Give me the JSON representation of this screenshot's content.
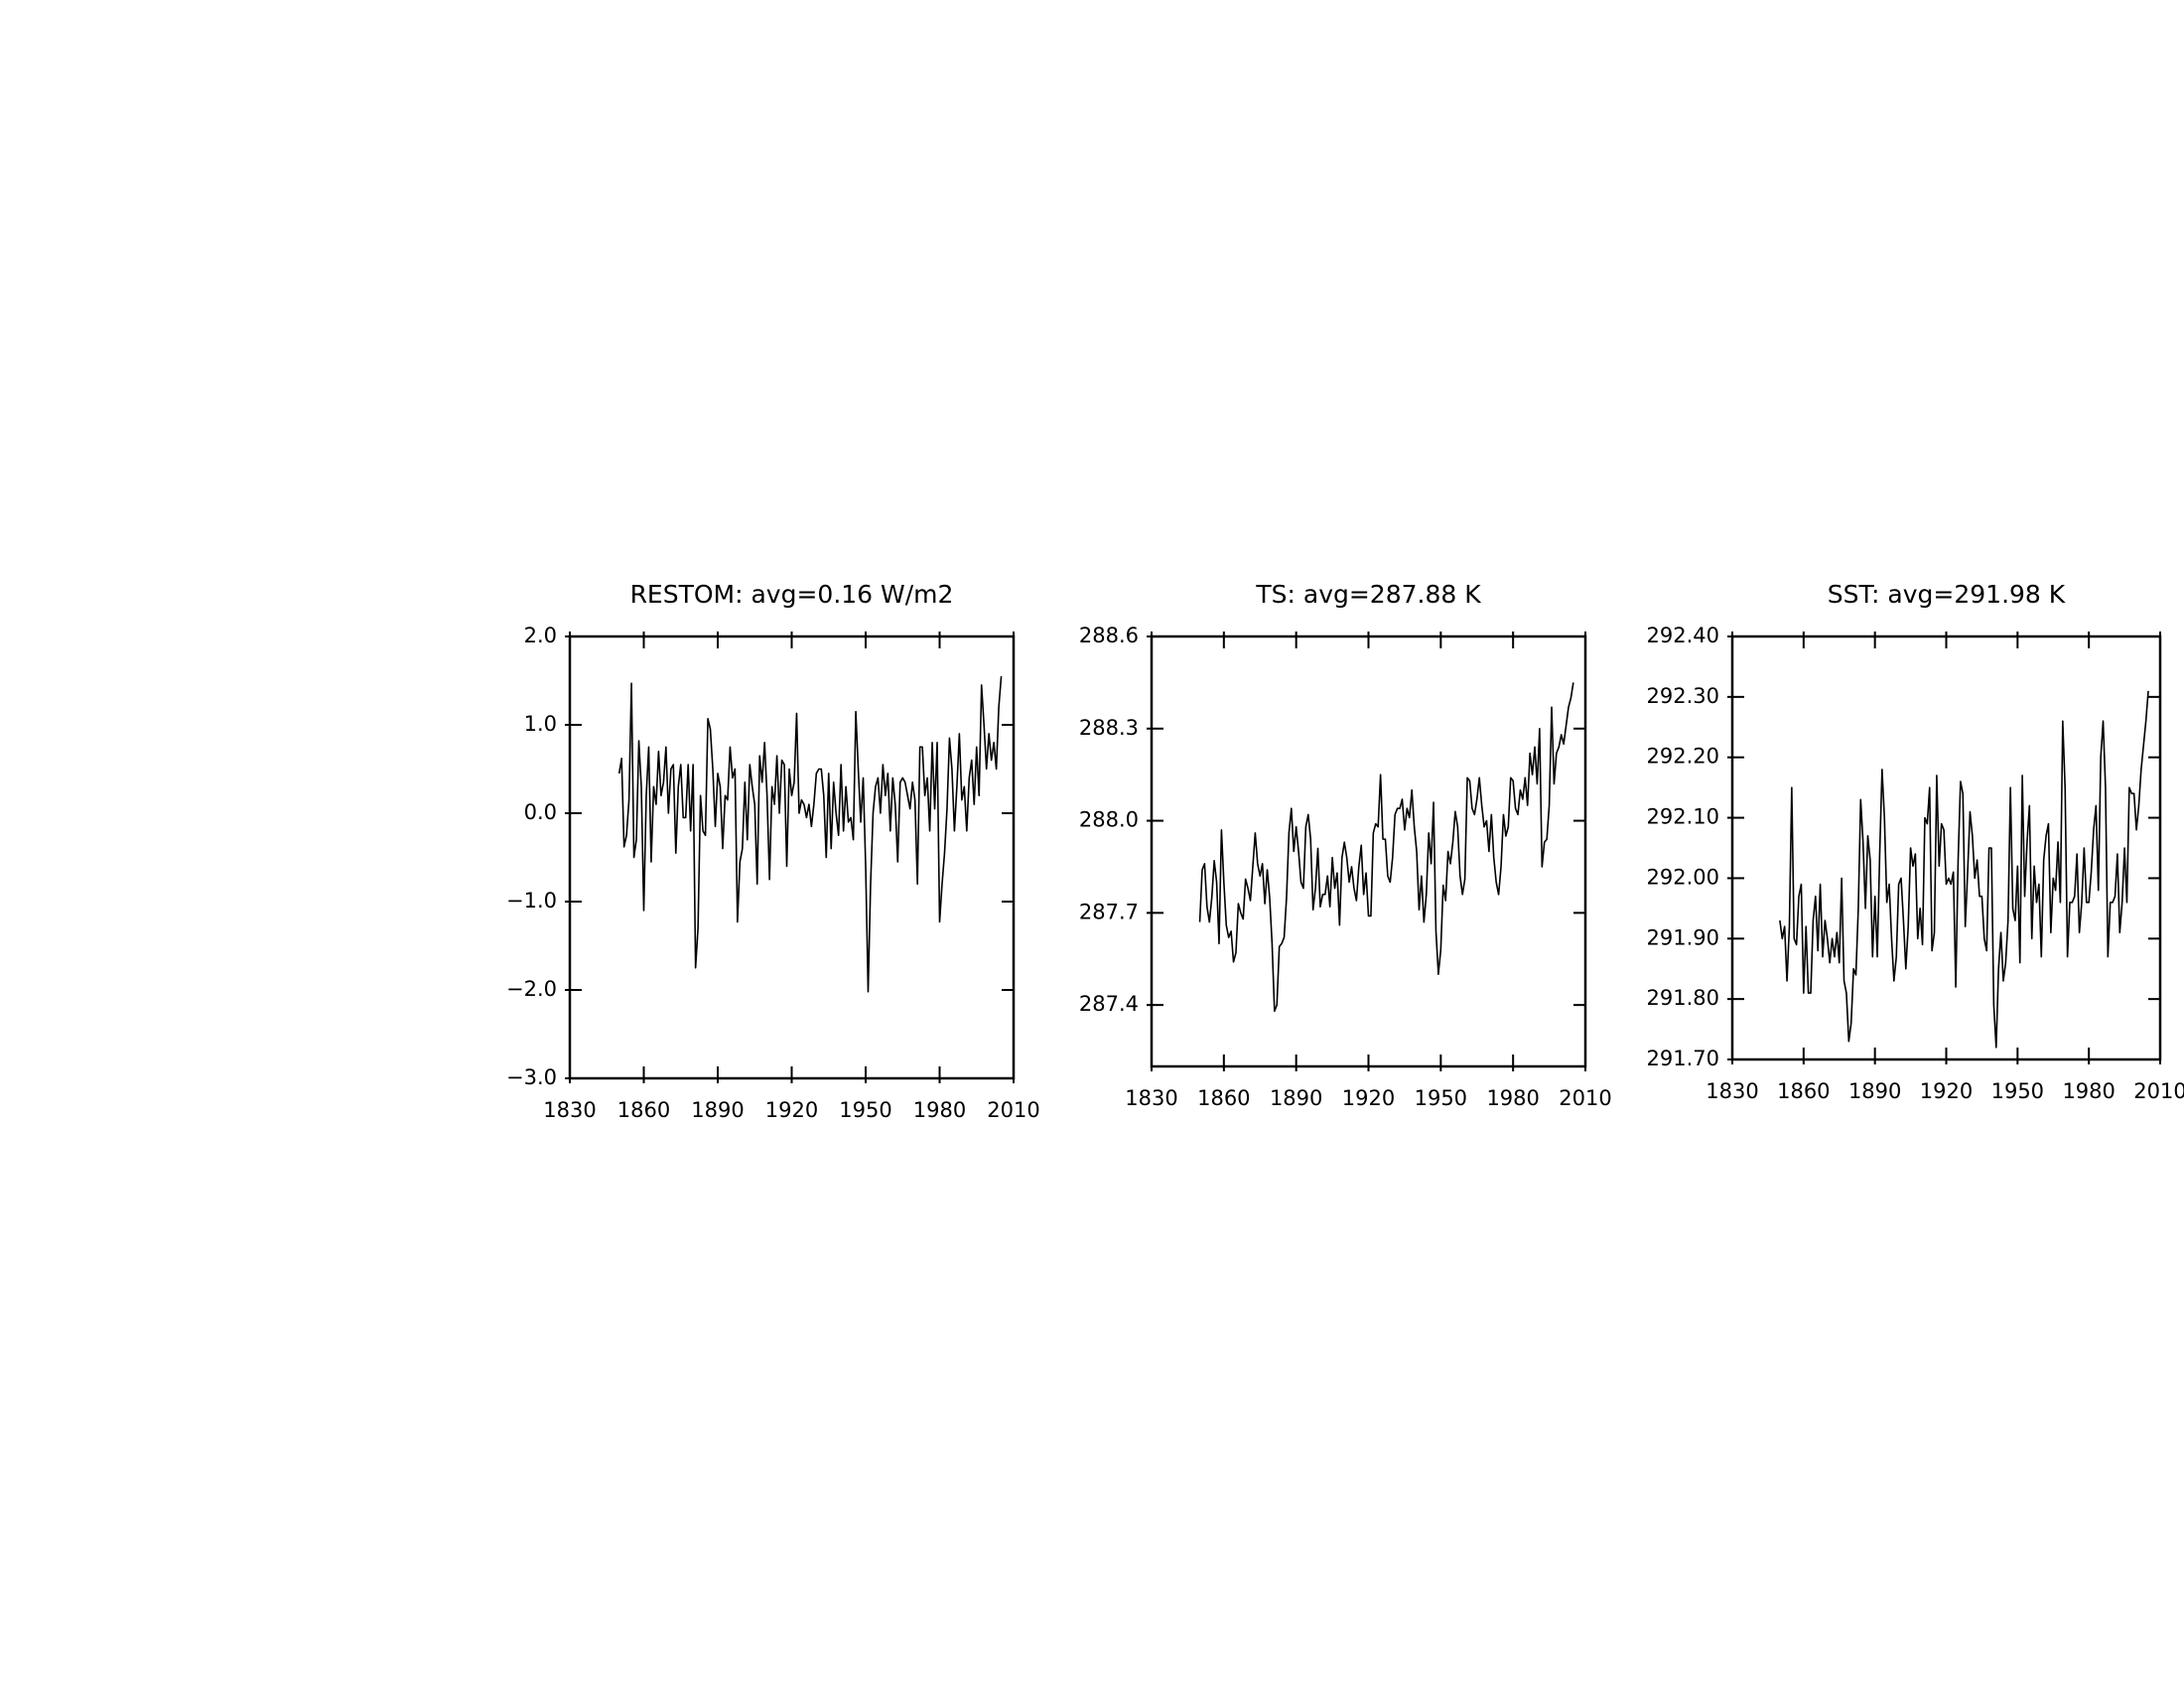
{
  "chart_data": [
    {
      "type": "line",
      "title": "RESTOM: avg=0.16 W/m2",
      "color": "#000000",
      "x": [
        1850,
        1851,
        1852,
        1853,
        1854,
        1855,
        1856,
        1857,
        1858,
        1859,
        1860,
        1861,
        1862,
        1863,
        1864,
        1865,
        1866,
        1867,
        1868,
        1869,
        1870,
        1871,
        1872,
        1873,
        1874,
        1875,
        1876,
        1877,
        1878,
        1879,
        1880,
        1881,
        1882,
        1883,
        1884,
        1885,
        1886,
        1887,
        1888,
        1889,
        1890,
        1891,
        1892,
        1893,
        1894,
        1895,
        1896,
        1897,
        1898,
        1899,
        1900,
        1901,
        1902,
        1903,
        1904,
        1905,
        1906,
        1907,
        1908,
        1909,
        1910,
        1911,
        1912,
        1913,
        1914,
        1915,
        1916,
        1917,
        1918,
        1919,
        1920,
        1921,
        1922,
        1923,
        1924,
        1925,
        1926,
        1927,
        1928,
        1929,
        1930,
        1931,
        1932,
        1933,
        1934,
        1935,
        1936,
        1937,
        1938,
        1939,
        1940,
        1941,
        1942,
        1943,
        1944,
        1945,
        1946,
        1947,
        1948,
        1949,
        1950,
        1951,
        1952,
        1953,
        1954,
        1955,
        1956,
        1957,
        1958,
        1959,
        1960,
        1961,
        1962,
        1963,
        1964,
        1965,
        1966,
        1967,
        1968,
        1969,
        1970,
        1971,
        1972,
        1973,
        1974,
        1975,
        1976,
        1977,
        1978,
        1979,
        1980,
        1981,
        1982,
        1983,
        1984,
        1985,
        1986,
        1987,
        1988,
        1989,
        1990,
        1991,
        1992,
        1993,
        1994,
        1995,
        1996,
        1997,
        1998,
        1999,
        2000,
        2001,
        2002,
        2003,
        2004,
        2005
      ],
      "values": [
        0.45,
        0.62,
        -0.38,
        -0.25,
        0.15,
        1.47,
        -0.5,
        -0.3,
        0.82,
        0.3,
        -1.1,
        0.2,
        0.75,
        -0.55,
        0.3,
        0.1,
        0.7,
        0.2,
        0.35,
        0.75,
        0.0,
        0.5,
        0.55,
        -0.45,
        0.3,
        0.55,
        -0.05,
        -0.05,
        0.55,
        -0.2,
        0.55,
        -1.75,
        -1.3,
        0.2,
        -0.2,
        -0.25,
        1.07,
        0.95,
        0.5,
        -0.15,
        0.45,
        0.3,
        -0.4,
        0.2,
        0.15,
        0.75,
        0.4,
        0.5,
        -1.23,
        -0.55,
        -0.4,
        0.35,
        -0.3,
        0.55,
        0.3,
        0.1,
        -0.8,
        0.65,
        0.35,
        0.8,
        0.2,
        -0.75,
        0.3,
        0.1,
        0.65,
        0.0,
        0.6,
        0.55,
        -0.6,
        0.5,
        0.2,
        0.35,
        1.13,
        0.0,
        0.15,
        0.1,
        -0.05,
        0.1,
        -0.15,
        0.1,
        0.45,
        0.5,
        0.5,
        0.2,
        -0.5,
        0.45,
        -0.4,
        0.35,
        0.0,
        -0.25,
        0.55,
        -0.2,
        0.3,
        -0.1,
        -0.05,
        -0.3,
        1.15,
        0.5,
        -0.1,
        0.4,
        -0.6,
        -2.02,
        -0.8,
        0.0,
        0.3,
        0.4,
        0.0,
        0.55,
        0.2,
        0.45,
        -0.2,
        0.4,
        0.1,
        -0.55,
        0.35,
        0.4,
        0.35,
        0.2,
        0.05,
        0.35,
        0.15,
        -0.8,
        0.75,
        0.75,
        0.2,
        0.4,
        -0.2,
        0.8,
        0.05,
        0.8,
        -1.23,
        -0.8,
        -0.45,
        0.05,
        0.85,
        0.5,
        -0.2,
        0.3,
        0.9,
        0.15,
        0.3,
        -0.2,
        0.4,
        0.6,
        0.1,
        0.75,
        0.2,
        1.45,
        1.0,
        0.5,
        0.9,
        0.6,
        0.8,
        0.5,
        1.2,
        1.55
      ],
      "xlim": [
        1830,
        2010
      ],
      "xticks": [
        1830,
        1860,
        1890,
        1920,
        1950,
        1980,
        2010
      ],
      "ylim": [
        -3,
        2
      ],
      "yticks": [
        {
          "value": -3,
          "label": "−3.0"
        },
        {
          "value": -2,
          "label": "−2.0"
        },
        {
          "value": -1,
          "label": "−1.0"
        },
        {
          "value": 0,
          "label": "0.0"
        },
        {
          "value": 1,
          "label": "1.0"
        },
        {
          "value": 2,
          "label": "2.0"
        }
      ]
    },
    {
      "type": "line",
      "title": "TS: avg=287.88 K",
      "color": "#000000",
      "x": [
        1850,
        1851,
        1852,
        1853,
        1854,
        1855,
        1856,
        1857,
        1858,
        1859,
        1860,
        1861,
        1862,
        1863,
        1864,
        1865,
        1866,
        1867,
        1868,
        1869,
        1870,
        1871,
        1872,
        1873,
        1874,
        1875,
        1876,
        1877,
        1878,
        1879,
        1880,
        1881,
        1882,
        1883,
        1884,
        1885,
        1886,
        1887,
        1888,
        1889,
        1890,
        1891,
        1892,
        1893,
        1894,
        1895,
        1896,
        1897,
        1898,
        1899,
        1900,
        1901,
        1902,
        1903,
        1904,
        1905,
        1906,
        1907,
        1908,
        1909,
        1910,
        1911,
        1912,
        1913,
        1914,
        1915,
        1916,
        1917,
        1918,
        1919,
        1920,
        1921,
        1922,
        1923,
        1924,
        1925,
        1926,
        1927,
        1928,
        1929,
        1930,
        1931,
        1932,
        1933,
        1934,
        1935,
        1936,
        1937,
        1938,
        1939,
        1940,
        1941,
        1942,
        1943,
        1944,
        1945,
        1946,
        1947,
        1948,
        1949,
        1950,
        1951,
        1952,
        1953,
        1954,
        1955,
        1956,
        1957,
        1958,
        1959,
        1960,
        1961,
        1962,
        1963,
        1964,
        1965,
        1966,
        1967,
        1968,
        1969,
        1970,
        1971,
        1972,
        1973,
        1974,
        1975,
        1976,
        1977,
        1978,
        1979,
        1980,
        1981,
        1982,
        1983,
        1984,
        1985,
        1986,
        1987,
        1988,
        1989,
        1990,
        1991,
        1992,
        1993,
        1994,
        1995,
        1996,
        1997,
        1998,
        1999,
        2000,
        2001,
        2002,
        2003,
        2004,
        2005
      ],
      "values": [
        287.67,
        287.84,
        287.86,
        287.72,
        287.67,
        287.75,
        287.87,
        287.8,
        287.6,
        287.97,
        287.8,
        287.66,
        287.62,
        287.64,
        287.54,
        287.57,
        287.73,
        287.7,
        287.68,
        287.81,
        287.78,
        287.74,
        287.85,
        287.96,
        287.86,
        287.82,
        287.86,
        287.73,
        287.84,
        287.75,
        287.6,
        287.38,
        287.4,
        287.59,
        287.6,
        287.62,
        287.75,
        287.96,
        288.04,
        287.9,
        287.98,
        287.9,
        287.8,
        287.78,
        287.98,
        288.02,
        287.94,
        287.71,
        287.78,
        287.91,
        287.72,
        287.76,
        287.76,
        287.82,
        287.72,
        287.88,
        287.78,
        287.83,
        287.66,
        287.88,
        287.93,
        287.88,
        287.8,
        287.85,
        287.78,
        287.74,
        287.85,
        287.92,
        287.76,
        287.83,
        287.69,
        287.69,
        287.96,
        287.99,
        287.98,
        288.15,
        287.94,
        287.94,
        287.82,
        287.8,
        287.88,
        288.02,
        288.04,
        288.04,
        288.07,
        287.97,
        288.04,
        288.01,
        288.1,
        287.98,
        287.9,
        287.71,
        287.82,
        287.67,
        287.76,
        287.96,
        287.86,
        288.06,
        287.64,
        287.5,
        287.58,
        287.79,
        287.74,
        287.9,
        287.86,
        287.93,
        288.03,
        287.98,
        287.82,
        287.76,
        287.81,
        288.14,
        288.13,
        288.04,
        288.02,
        288.07,
        288.14,
        288.05,
        287.98,
        288.0,
        287.9,
        288.02,
        287.88,
        287.8,
        287.76,
        287.85,
        288.02,
        287.95,
        287.98,
        288.14,
        288.13,
        288.04,
        288.02,
        288.1,
        288.07,
        288.14,
        288.05,
        288.22,
        288.15,
        288.24,
        288.12,
        288.3,
        287.85,
        287.93,
        287.94,
        288.05,
        288.37,
        288.12,
        288.22,
        288.24,
        288.28,
        288.25,
        288.31,
        288.37,
        288.4,
        288.45
      ],
      "xlim": [
        1830,
        2010
      ],
      "xticks": [
        1830,
        1860,
        1890,
        1920,
        1950,
        1980,
        2010
      ],
      "ylim": [
        287.2,
        288.6
      ],
      "yticks": [
        287.4,
        287.7,
        {
          "value": 288.0,
          "label": "288.0"
        },
        288.3,
        288.6
      ]
    },
    {
      "type": "line",
      "title": "SST: avg=291.98 K",
      "color": "#000000",
      "x": [
        1850,
        1851,
        1852,
        1853,
        1854,
        1855,
        1856,
        1857,
        1858,
        1859,
        1860,
        1861,
        1862,
        1863,
        1864,
        1865,
        1866,
        1867,
        1868,
        1869,
        1870,
        1871,
        1872,
        1873,
        1874,
        1875,
        1876,
        1877,
        1878,
        1879,
        1880,
        1881,
        1882,
        1883,
        1884,
        1885,
        1886,
        1887,
        1888,
        1889,
        1890,
        1891,
        1892,
        1893,
        1894,
        1895,
        1896,
        1897,
        1898,
        1899,
        1900,
        1901,
        1902,
        1903,
        1904,
        1905,
        1906,
        1907,
        1908,
        1909,
        1910,
        1911,
        1912,
        1913,
        1914,
        1915,
        1916,
        1917,
        1918,
        1919,
        1920,
        1921,
        1922,
        1923,
        1924,
        1925,
        1926,
        1927,
        1928,
        1929,
        1930,
        1931,
        1932,
        1933,
        1934,
        1935,
        1936,
        1937,
        1938,
        1939,
        1940,
        1941,
        1942,
        1943,
        1944,
        1945,
        1946,
        1947,
        1948,
        1949,
        1950,
        1951,
        1952,
        1953,
        1954,
        1955,
        1956,
        1957,
        1958,
        1959,
        1960,
        1961,
        1962,
        1963,
        1964,
        1965,
        1966,
        1967,
        1968,
        1969,
        1970,
        1971,
        1972,
        1973,
        1974,
        1975,
        1976,
        1977,
        1978,
        1979,
        1980,
        1981,
        1982,
        1983,
        1984,
        1985,
        1986,
        1987,
        1988,
        1989,
        1990,
        1991,
        1992,
        1993,
        1994,
        1995,
        1996,
        1997,
        1998,
        1999,
        2000,
        2001,
        2002,
        2003,
        2004,
        2005
      ],
      "values": [
        291.93,
        291.9,
        291.92,
        291.83,
        291.92,
        292.15,
        291.9,
        291.89,
        291.97,
        291.99,
        291.81,
        291.92,
        291.81,
        291.81,
        291.93,
        291.97,
        291.88,
        291.99,
        291.87,
        291.93,
        291.9,
        291.86,
        291.9,
        291.87,
        291.91,
        291.86,
        292.0,
        291.83,
        291.81,
        291.73,
        291.76,
        291.85,
        291.84,
        291.95,
        292.13,
        292.06,
        291.95,
        292.07,
        292.03,
        291.87,
        291.97,
        291.87,
        292.04,
        292.18,
        292.1,
        291.96,
        291.99,
        291.9,
        291.83,
        291.87,
        291.99,
        292.0,
        291.93,
        291.85,
        291.92,
        292.05,
        292.02,
        292.04,
        291.9,
        291.95,
        291.89,
        292.1,
        292.09,
        292.15,
        291.88,
        291.91,
        292.17,
        292.02,
        292.09,
        292.08,
        291.99,
        292.0,
        291.99,
        292.01,
        291.82,
        292.03,
        292.16,
        292.14,
        291.92,
        292.01,
        292.11,
        292.07,
        292.0,
        292.03,
        291.97,
        291.97,
        291.9,
        291.88,
        292.05,
        292.05,
        291.79,
        291.72,
        291.85,
        291.91,
        291.83,
        291.86,
        291.93,
        292.15,
        291.95,
        291.93,
        292.02,
        291.86,
        292.17,
        291.97,
        292.06,
        292.12,
        291.9,
        292.02,
        291.96,
        291.99,
        291.87,
        292.03,
        292.07,
        292.09,
        291.91,
        292.0,
        291.98,
        292.06,
        291.96,
        292.26,
        292.15,
        291.87,
        291.96,
        291.96,
        291.97,
        292.04,
        291.91,
        291.96,
        292.05,
        291.96,
        291.96,
        292.01,
        292.08,
        292.12,
        291.98,
        292.2,
        292.26,
        292.15,
        291.87,
        291.96,
        291.96,
        291.97,
        292.04,
        291.91,
        291.96,
        292.05,
        291.96,
        292.15,
        292.14,
        292.14,
        292.08,
        292.12,
        292.18,
        292.22,
        292.26,
        292.31
      ],
      "xlim": [
        1830,
        2010
      ],
      "xticks": [
        1830,
        1860,
        1890,
        1920,
        1950,
        1980,
        2010
      ],
      "ylim": [
        291.7,
        292.4
      ],
      "yticks": [
        {
          "value": 291.7,
          "label": "291.70"
        },
        {
          "value": 291.8,
          "label": "291.80"
        },
        {
          "value": 291.9,
          "label": "291.90"
        },
        {
          "value": 292.0,
          "label": "292.00"
        },
        {
          "value": 292.1,
          "label": "292.10"
        },
        {
          "value": 292.2,
          "label": "292.20"
        },
        {
          "value": 292.3,
          "label": "292.30"
        },
        {
          "value": 292.4,
          "label": "292.40"
        }
      ]
    }
  ]
}
